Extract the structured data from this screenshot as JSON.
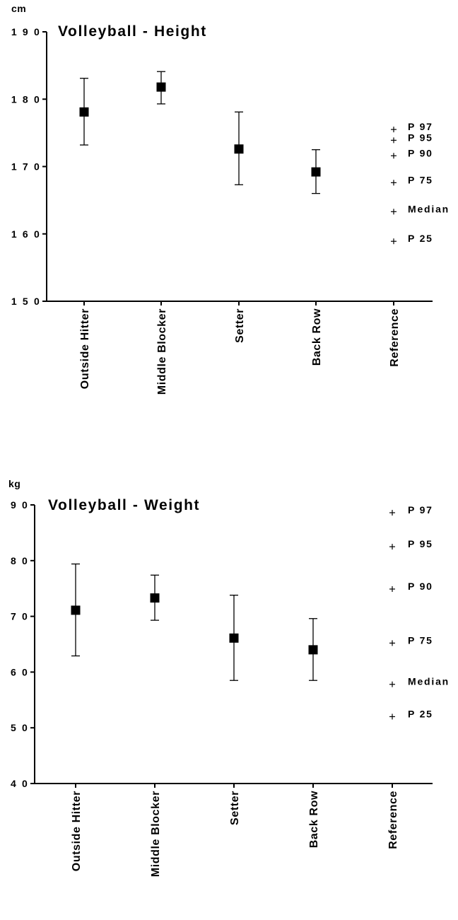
{
  "chart_data": [
    {
      "type": "scatter",
      "title": "Volleyball - Height",
      "ylabel": "cm",
      "ylim": [
        150,
        190
      ],
      "yticks": [
        "1 5 0",
        "1 6 0",
        "1 7 0",
        "1 8 0",
        "1 9 0"
      ],
      "categories": [
        "Outside Hitter",
        "Middle Blocker",
        "Setter",
        "Back Row",
        "Reference"
      ],
      "series": [
        {
          "points": [
            {
              "category": "Outside Hitter",
              "mean": 178.1,
              "low": 173.2,
              "high": 183.1
            },
            {
              "category": "Middle Blocker",
              "mean": 181.8,
              "low": 179.3,
              "high": 184.1
            },
            {
              "category": "Setter",
              "mean": 172.6,
              "low": 167.3,
              "high": 178.1
            },
            {
              "category": "Back Row",
              "mean": 169.2,
              "low": 166.0,
              "high": 172.5
            }
          ]
        }
      ],
      "reference": [
        {
          "label": "P 97",
          "value": 175.5
        },
        {
          "label": "P 95",
          "value": 173.9
        },
        {
          "label": "P 90",
          "value": 171.6
        },
        {
          "label": "P 75",
          "value": 167.6
        },
        {
          "label": "Median",
          "value": 163.3
        },
        {
          "label": "P 25",
          "value": 158.9
        }
      ]
    },
    {
      "type": "scatter",
      "title": "Volleyball - Weight",
      "ylabel": "kg",
      "ylim": [
        40,
        90
      ],
      "yticks": [
        "4 0",
        "5 0",
        "6 0",
        "7 0",
        "8 0",
        "9 0"
      ],
      "categories": [
        "Outside Hitter",
        "Middle Blocker",
        "Setter",
        "Back Row",
        "Reference"
      ],
      "series": [
        {
          "points": [
            {
              "category": "Outside Hitter",
              "mean": 71.1,
              "low": 62.9,
              "high": 79.4
            },
            {
              "category": "Middle Blocker",
              "mean": 73.3,
              "low": 69.3,
              "high": 77.4
            },
            {
              "category": "Setter",
              "mean": 66.1,
              "low": 58.5,
              "high": 73.8
            },
            {
              "category": "Back Row",
              "mean": 64.0,
              "low": 58.5,
              "high": 69.6
            }
          ]
        }
      ],
      "reference": [
        {
          "label": "P 97",
          "value": 88.6
        },
        {
          "label": "P 95",
          "value": 82.5
        },
        {
          "label": "P 90",
          "value": 74.9
        },
        {
          "label": "P 75",
          "value": 65.2
        },
        {
          "label": "Median",
          "value": 57.8
        },
        {
          "label": "P 25",
          "value": 52.0
        }
      ]
    }
  ]
}
